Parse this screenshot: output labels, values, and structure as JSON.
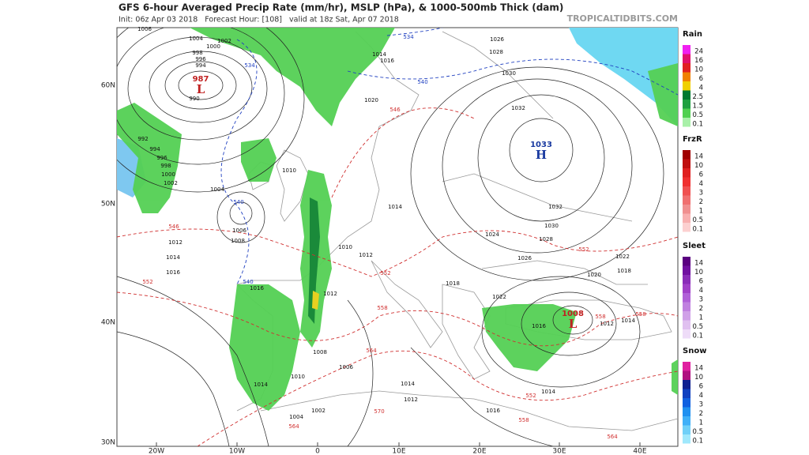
{
  "header": {
    "title": "GFS 6-hour Averaged Precip Rate (mm/hr), MSLP (hPa), & 1000-500mb Thick (dam)",
    "subtitle": "Init: 06z Apr 03 2018   Forecast Hour: [108]   valid at 18z Sat, Apr 07 2018",
    "site": "TROPICALTIDBITS.COM"
  },
  "map": {
    "lon_labels": [
      "20W",
      "10W",
      "0",
      "10E",
      "20E",
      "30E",
      "40E"
    ],
    "lat_labels": [
      "60N",
      "50N",
      "40N",
      "30N"
    ],
    "centers": [
      {
        "value": "987",
        "symbol": "L",
        "color": "#c02020"
      },
      {
        "value": "1033",
        "symbol": "H",
        "color": "#1a3aa0"
      },
      {
        "value": "1008",
        "symbol": "L",
        "color": "#c02020"
      }
    ],
    "isobars": [
      "1006",
      "1004",
      "1002",
      "1000",
      "998",
      "996",
      "994",
      "990",
      "992",
      "994",
      "996",
      "998",
      "1000",
      "1002",
      "1004",
      "1006",
      "1008",
      "1010",
      "1012",
      "1014",
      "1016",
      "1014",
      "1010",
      "1012",
      "1020",
      "1024",
      "1026",
      "1028",
      "1030",
      "1032",
      "1032",
      "1030",
      "1028",
      "1026",
      "1014",
      "1016",
      "1018",
      "1022",
      "1016",
      "1012",
      "1014",
      "1020",
      "1022",
      "1018",
      "1014",
      "1016",
      "1014",
      "1012",
      "1006",
      "1010",
      "1008",
      "1014",
      "1002",
      "1004",
      "1016",
      "1012"
    ],
    "thickness_red": [
      "546",
      "552",
      "552",
      "558",
      "564",
      "570",
      "546",
      "564",
      "552",
      "558",
      "552",
      "558",
      "558",
      "564"
    ],
    "thickness_blue": [
      "534",
      "534",
      "540",
      "540",
      "540"
    ]
  },
  "legend": [
    {
      "name": "Rain",
      "labels": [
        "24",
        "16",
        "10",
        "6",
        "4",
        "2.5",
        "1.5",
        "0.5",
        "0.1"
      ],
      "colors": [
        "#f020f0",
        "#e0106a",
        "#e02020",
        "#f08000",
        "#f0d000",
        "#007a30",
        "#20a040",
        "#50d050",
        "#a8f0a8"
      ]
    },
    {
      "name": "FrzR",
      "labels": [
        "14",
        "10",
        "6",
        "4",
        "3",
        "2",
        "1",
        "0.5",
        "0.1"
      ],
      "colors": [
        "#a00000",
        "#c01010",
        "#e02020",
        "#f03030",
        "#f05050",
        "#f07070",
        "#f09090",
        "#f8b0b0",
        "#fcd0d0"
      ]
    },
    {
      "name": "Sleet",
      "labels": [
        "14",
        "10",
        "6",
        "4",
        "3",
        "2",
        "1",
        "0.5",
        "0.1"
      ],
      "colors": [
        "#5a0080",
        "#7010a0",
        "#8a2cb8",
        "#a040c8",
        "#b060d8",
        "#c080e0",
        "#d0a0e8",
        "#e0c0f0",
        "#eedcf8"
      ]
    },
    {
      "name": "Snow",
      "labels": [
        "14",
        "10",
        "6",
        "4",
        "3",
        "2",
        "1",
        "0.5",
        "0.1"
      ],
      "colors": [
        "#e020a0",
        "#b01080",
        "#102090",
        "#1040c0",
        "#1060e0",
        "#2090f0",
        "#40b0f8",
        "#70d0f8",
        "#a0e8fc"
      ]
    }
  ]
}
